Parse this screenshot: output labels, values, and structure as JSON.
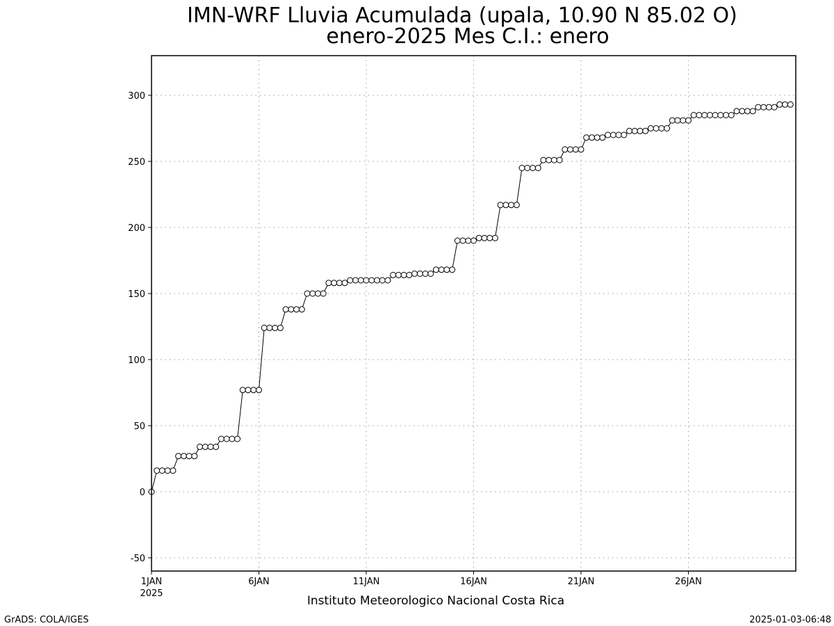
{
  "chart_data": {
    "type": "line",
    "title": "IMN-WRF  Lluvia Acumulada (upala, 10.90  N 85.02  O)",
    "subtitle": "enero-2025 Mes C.I.: enero",
    "xlabel": "",
    "ylabel": "",
    "credit": "Instituto Meteorologico Nacional Costa Rica",
    "x_ticks": [
      {
        "label": "1JAN",
        "sublabel": "2025",
        "day": 1
      },
      {
        "label": "6JAN",
        "day": 6
      },
      {
        "label": "11JAN",
        "day": 11
      },
      {
        "label": "16JAN",
        "day": 16
      },
      {
        "label": "21JAN",
        "day": 21
      },
      {
        "label": "26JAN",
        "day": 26
      }
    ],
    "y_ticks": [
      -50,
      0,
      50,
      100,
      150,
      200,
      250,
      300
    ],
    "xlim": [
      1,
      31
    ],
    "ylim": [
      -60,
      330
    ],
    "grid": true,
    "x_interval_hours": 6,
    "series": [
      {
        "values": [
          0,
          16,
          16,
          16,
          16,
          27,
          27,
          27,
          27,
          34,
          34,
          34,
          34,
          40,
          40,
          40,
          40,
          77,
          77,
          77,
          77,
          124,
          124,
          124,
          124,
          138,
          138,
          138,
          138,
          150,
          150,
          150,
          150,
          158,
          158,
          158,
          158,
          160,
          160,
          160,
          160,
          160,
          160,
          160,
          160,
          164,
          164,
          164,
          164,
          165,
          165,
          165,
          165,
          168,
          168,
          168,
          168,
          190,
          190,
          190,
          190,
          192,
          192,
          192,
          192,
          217,
          217,
          217,
          217,
          245,
          245,
          245,
          245,
          251,
          251,
          251,
          251,
          259,
          259,
          259,
          259,
          268,
          268,
          268,
          268,
          270,
          270,
          270,
          270,
          273,
          273,
          273,
          273,
          275,
          275,
          275,
          275,
          281,
          281,
          281,
          281,
          285,
          285,
          285,
          285,
          285,
          285,
          285,
          285,
          288,
          288,
          288,
          288,
          291,
          291,
          291,
          291,
          293,
          293,
          293
        ]
      }
    ]
  },
  "footer": {
    "left": "GrADS: COLA/IGES",
    "right": "2025-01-03-06:48"
  }
}
